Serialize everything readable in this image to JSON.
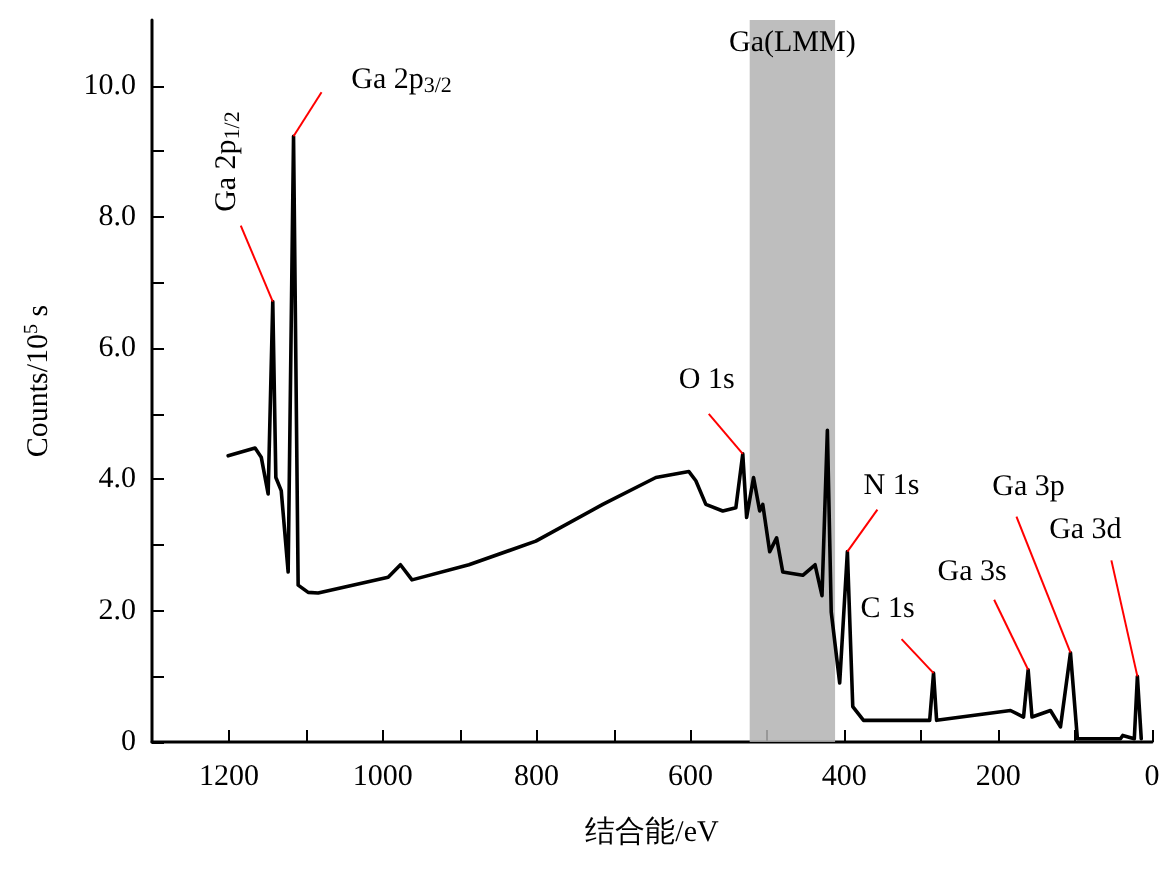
{
  "chart_data": {
    "type": "line",
    "xlabel": "结合能/eV",
    "ylabel": "Counts/10$^{5}$ s",
    "x": [
      1201,
      1166,
      1158,
      1149,
      1143,
      1139,
      1132,
      1123,
      1116,
      1110,
      1097,
      1084,
      993,
      977,
      962,
      888,
      801,
      714,
      645,
      602,
      593,
      580,
      558,
      541,
      532,
      527,
      518,
      510,
      506,
      497,
      488,
      480,
      454,
      438,
      429,
      422,
      417,
      406,
      396,
      389,
      375,
      289,
      284,
      280,
      184,
      167,
      161,
      156,
      132,
      119,
      106,
      97,
      41,
      38,
      23,
      19,
      14
    ],
    "series": [
      {
        "color": "#000000",
        "values": [
          4.36,
          4.48,
          4.34,
          3.78,
          6.71,
          4.03,
          3.83,
          2.59,
          9.23,
          2.39,
          2.28,
          2.27,
          2.51,
          2.7,
          2.47,
          2.7,
          3.06,
          3.62,
          4.03,
          4.12,
          3.98,
          3.62,
          3.52,
          3.57,
          4.39,
          3.42,
          4.03,
          3.52,
          3.62,
          2.9,
          3.11,
          2.59,
          2.54,
          2.7,
          2.23,
          4.75,
          1.98,
          0.9,
          2.9,
          0.54,
          0.33,
          0.33,
          1.05,
          0.33,
          0.48,
          0.38,
          1.1,
          0.38,
          0.48,
          0.23,
          1.36,
          0.05,
          0.05,
          0.1,
          0.05,
          1.0,
          0.05
        ]
      }
    ],
    "xlim": [
      1300,
      0
    ],
    "xticks": [
      1200,
      {
        "value": 1100,
        "label": null
      },
      1000,
      {
        "value": 900,
        "label": null
      },
      800,
      {
        "value": 700,
        "label": null
      },
      600,
      {
        "value": 500,
        "label": null
      },
      400,
      {
        "value": 300,
        "label": null
      },
      200,
      {
        "value": 100,
        "label": null
      },
      0
    ],
    "ylim": [
      0,
      11
    ],
    "yticks": [
      0,
      {
        "value": 1,
        "label": null
      },
      {
        "value": 2,
        "label": "2.0"
      },
      {
        "value": 3,
        "label": null
      },
      {
        "value": 4,
        "label": "4.0"
      },
      {
        "value": 5,
        "label": null
      },
      {
        "value": 6,
        "label": "6.0"
      },
      {
        "value": 7,
        "label": null
      },
      {
        "value": 8,
        "label": "8.0"
      },
      {
        "value": 9,
        "label": null
      },
      {
        "value": 10,
        "label": "10.0"
      }
    ],
    "bands": [
      {
        "axis": "x",
        "from": 523,
        "to": 412,
        "label": "Ga(LMM)",
        "color": "#b3b3b3"
      }
    ],
    "annotations": [
      {
        "text": "Ga 2p$_{1/2}$",
        "x": 1143,
        "y": 6.71
      },
      {
        "text": "Ga 2p$_{3/2}$",
        "x": 1116,
        "y": 9.23
      },
      {
        "text": "O 1s",
        "x": 532,
        "y": 4.39
      },
      {
        "text": "N 1s",
        "x": 396,
        "y": 2.9
      },
      {
        "text": "C 1s",
        "x": 284,
        "y": 1.05
      },
      {
        "text": "Ga 3s",
        "x": 161,
        "y": 1.1
      },
      {
        "text": "Ga 3p",
        "x": 106,
        "y": 1.36
      },
      {
        "text": "Ga 3d",
        "x": 19,
        "y": 1.0
      }
    ],
    "grid": false,
    "marker": "none",
    "line_style": "solid"
  }
}
